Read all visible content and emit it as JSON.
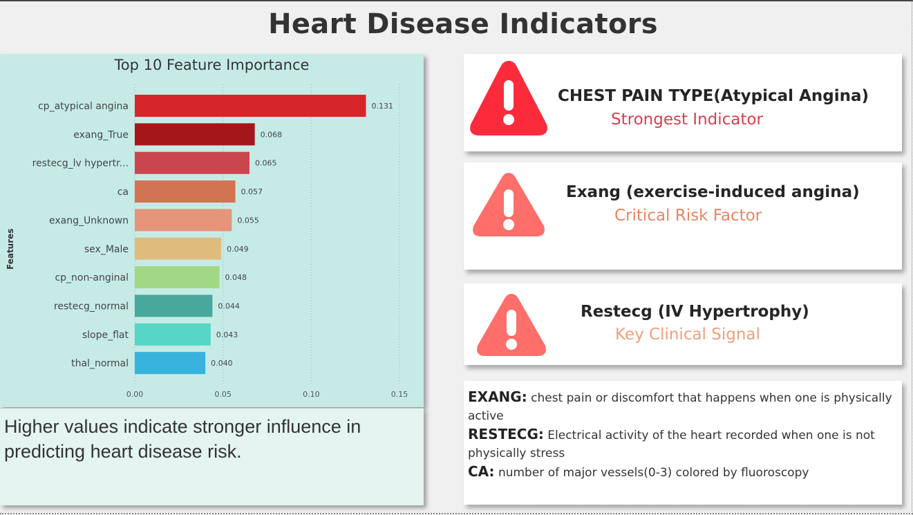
{
  "page_title": "Heart Disease Indicators",
  "chart_data": {
    "type": "bar",
    "orientation": "horizontal",
    "title": "Top 10 Feature Importance",
    "xlabel": "",
    "ylabel": "Features",
    "xlim": [
      0,
      0.15
    ],
    "xticks": [
      "0.00",
      "0.05",
      "0.10",
      "0.15"
    ],
    "xtick_values": [
      0,
      0.05,
      0.1,
      0.15
    ],
    "grid": "vertical-dotted",
    "categories": [
      "cp_atypical angina",
      "exang_True",
      "restecg_lv hypertr...",
      "ca",
      "exang_Unknown",
      "sex_Male",
      "cp_non-anginal",
      "restecg_normal",
      "slope_flat",
      "thal_normal"
    ],
    "values": [
      0.131,
      0.068,
      0.065,
      0.057,
      0.055,
      0.049,
      0.048,
      0.044,
      0.043,
      0.04
    ],
    "value_labels": [
      "0.131",
      "0.068",
      "0.065",
      "0.057",
      "0.055",
      "0.049",
      "0.048",
      "0.044",
      "0.043",
      "0.040"
    ],
    "colors": [
      "#d7262b",
      "#a5161b",
      "#c9464e",
      "#d27452",
      "#e6957a",
      "#dfbb7d",
      "#a2d785",
      "#47a89c",
      "#55d6c6",
      "#38b3dd"
    ]
  },
  "note": "Higher values indicate stronger influence in predicting heart disease risk.",
  "indicators": [
    {
      "title": "CHEST PAIN TYPE(Atypical Angina)",
      "subtitle": "Strongest Indicator",
      "subtitle_color": "#d6404e",
      "icon": "warning-icon",
      "icon_color": "#fb2b3c"
    },
    {
      "title": "Exang (exercise-induced angina)",
      "subtitle": "Critical Risk Factor",
      "subtitle_color": "#ec8461",
      "icon": "warning-icon",
      "icon_color": "#fe6e6a"
    },
    {
      "title": "Restecg (IV Hypertrophy)",
      "subtitle": "Key Clinical Signal",
      "subtitle_color": "#f0a078",
      "icon": "warning-icon",
      "icon_color": "#fe6e6a"
    }
  ],
  "definitions": [
    {
      "term": "EXANG:",
      "text": "chest pain or discomfort that happens when one is physically active"
    },
    {
      "term": "RESTECG:",
      "text": "Electrical activity of the heart recorded when one is not physically stress"
    },
    {
      "term": "CA:",
      "text": "number of major vessels(0-3) colored by fluoroscopy"
    }
  ]
}
